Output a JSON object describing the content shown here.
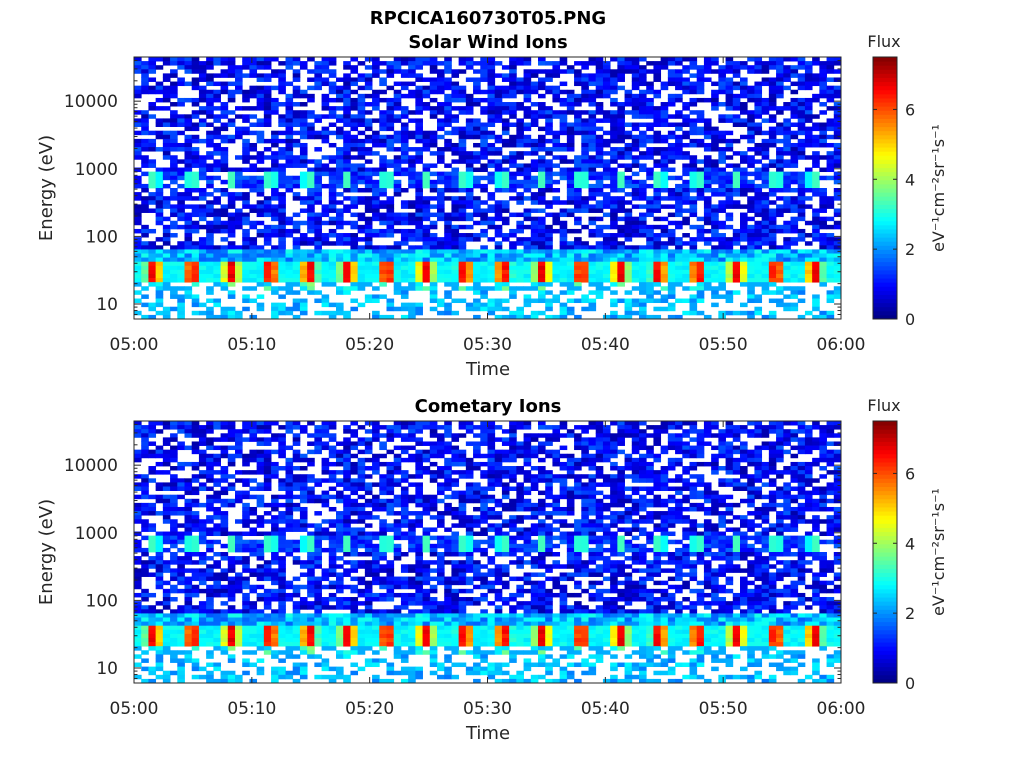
{
  "figure": {
    "title": "RPCICA160730T05.PNG"
  },
  "chart_data": [
    {
      "type": "heatmap",
      "title": "Solar Wind Ions",
      "xlabel": "Time",
      "ylabel": "Energy (eV)",
      "x_ticks": [
        "05:00",
        "05:10",
        "05:20",
        "05:30",
        "05:40",
        "05:50",
        "06:00"
      ],
      "xlim": [
        "05:00",
        "06:00"
      ],
      "y_scale": "log",
      "y_ticks": [
        10,
        100,
        1000,
        10000
      ],
      "y_tick_labels": [
        "10",
        "100",
        "1000",
        "10000"
      ],
      "ylim": [
        6,
        45000
      ],
      "colorbar": {
        "label": "Flux",
        "units": "eV⁻¹cm⁻²sr⁻¹s⁻¹",
        "range": [
          0,
          7.5
        ],
        "ticks": [
          0,
          2,
          4,
          6
        ],
        "tick_labels": [
          "0",
          "2",
          "4",
          "6"
        ],
        "colormap": "jet"
      },
      "features": {
        "main_band": {
          "energy_eV": [
            22,
            40
          ],
          "peak_flux": 6.5,
          "period_min": 3.3
        },
        "secondary_band": {
          "energy_eV": [
            550,
            850
          ],
          "peak_flux": 3.3,
          "period_min": 3.3
        },
        "background_flux": [
          0.3,
          1.6
        ]
      }
    },
    {
      "type": "heatmap",
      "title": "Cometary Ions",
      "xlabel": "Time",
      "ylabel": "Energy (eV)",
      "x_ticks": [
        "05:00",
        "05:10",
        "05:20",
        "05:30",
        "05:40",
        "05:50",
        "06:00"
      ],
      "xlim": [
        "05:00",
        "06:00"
      ],
      "y_scale": "log",
      "y_ticks": [
        10,
        100,
        1000,
        10000
      ],
      "y_tick_labels": [
        "10",
        "100",
        "1000",
        "10000"
      ],
      "ylim": [
        6,
        45000
      ],
      "colorbar": {
        "label": "Flux",
        "units": "eV⁻¹cm⁻²sr⁻¹s⁻¹",
        "range": [
          0,
          7.5
        ],
        "ticks": [
          0,
          2,
          4,
          6
        ],
        "tick_labels": [
          "0",
          "2",
          "4",
          "6"
        ],
        "colormap": "jet"
      },
      "features": {
        "main_band": {
          "energy_eV": [
            22,
            40
          ],
          "peak_flux": 6.5,
          "period_min": 3.3
        },
        "secondary_band": {
          "energy_eV": [
            550,
            850
          ],
          "peak_flux": 3.3,
          "period_min": 3.3
        },
        "background_flux": [
          0.3,
          1.6
        ]
      }
    }
  ]
}
